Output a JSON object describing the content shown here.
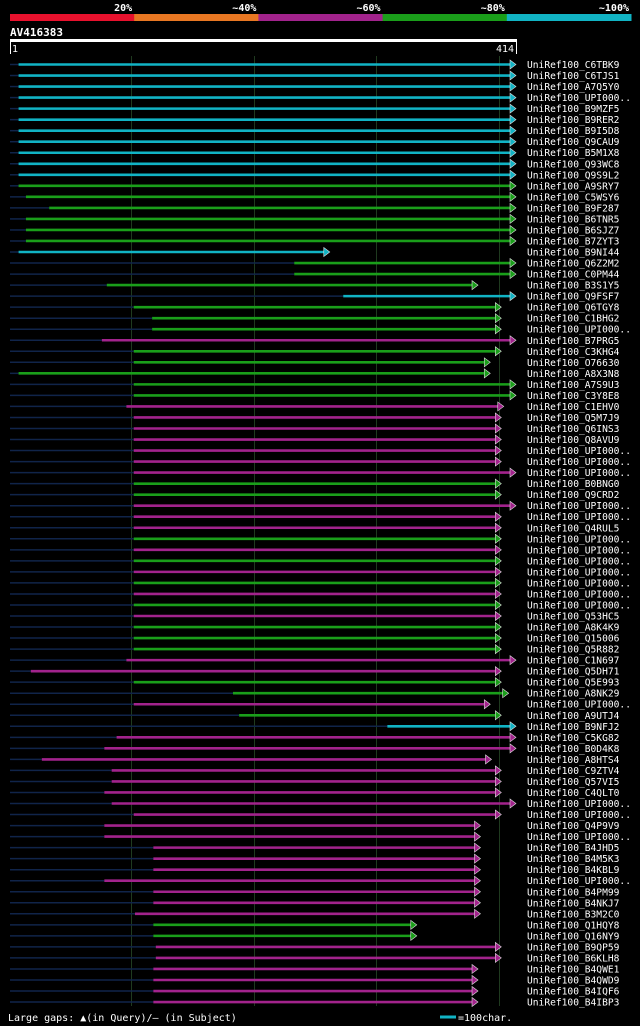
{
  "chart_data": {
    "type": "alignment-overview",
    "title": "AV416383",
    "query_start": 1,
    "query_end": 414,
    "colour_scale": [
      {
        "label": "20%",
        "color": "#e8112d"
      },
      {
        "label": "~40%",
        "color": "#e87722"
      },
      {
        "label": "~60%",
        "color": "#a2238c"
      },
      {
        "label": "~80%",
        "color": "#1a9e1a"
      },
      {
        "label": "~100%",
        "color": "#11b3c4"
      }
    ],
    "colors": {
      "cyan": "#11b3c4",
      "green": "#1a9e1a",
      "purple": "#a2238c",
      "grid": "#1f3a1f",
      "stem": "#10244a",
      "text": "#ffffff"
    },
    "footer": {
      "gaps_text": "Large gaps: ▲(in Query)/– (in Subject)",
      "scale_text": "=100char."
    },
    "hits": [
      {
        "label": "UniRef100_C6TBK9",
        "start": 8,
        "end": 414,
        "color": "cyan",
        "arrow": true
      },
      {
        "label": "UniRef100_C6TJS1",
        "start": 8,
        "end": 414,
        "color": "cyan",
        "arrow": true
      },
      {
        "label": "UniRef100_A7Q5Y0",
        "start": 8,
        "end": 414,
        "color": "cyan",
        "arrow": true
      },
      {
        "label": "UniRef100_UPI000..",
        "start": 8,
        "end": 414,
        "color": "cyan",
        "arrow": true
      },
      {
        "label": "UniRef100_B9MZF5",
        "start": 8,
        "end": 414,
        "color": "cyan",
        "arrow": true
      },
      {
        "label": "UniRef100_B9RER2",
        "start": 8,
        "end": 414,
        "color": "cyan",
        "arrow": true
      },
      {
        "label": "UniRef100_B9I5D8",
        "start": 8,
        "end": 414,
        "color": "cyan",
        "arrow": true
      },
      {
        "label": "UniRef100_Q9CAU9",
        "start": 8,
        "end": 414,
        "color": "cyan",
        "arrow": true
      },
      {
        "label": "UniRef100_B5M1X8",
        "start": 8,
        "end": 414,
        "color": "cyan",
        "arrow": true
      },
      {
        "label": "UniRef100_Q93WC8",
        "start": 8,
        "end": 414,
        "color": "cyan",
        "arrow": true
      },
      {
        "label": "UniRef100_Q9S9L2",
        "start": 8,
        "end": 414,
        "color": "cyan",
        "arrow": true
      },
      {
        "label": "UniRef100_A9SRY7",
        "start": 8,
        "end": 414,
        "color": "green",
        "arrow": true
      },
      {
        "label": "UniRef100_C5WSY6",
        "start": 14,
        "end": 414,
        "color": "green",
        "arrow": true
      },
      {
        "label": "UniRef100_B9F287",
        "start": 33,
        "end": 414,
        "color": "green",
        "arrow": true
      },
      {
        "label": "UniRef100_B6TNR5",
        "start": 14,
        "end": 414,
        "color": "green",
        "arrow": true
      },
      {
        "label": "UniRef100_B6SJZ7",
        "start": 14,
        "end": 414,
        "color": "green",
        "arrow": true
      },
      {
        "label": "UniRef100_B7ZYT3",
        "start": 14,
        "end": 414,
        "color": "green",
        "arrow": true
      },
      {
        "label": "UniRef100_B9NI44",
        "start": 8,
        "end": 262,
        "color": "cyan",
        "arrow": true
      },
      {
        "label": "UniRef100_Q6Z2M2",
        "start": 233,
        "end": 414,
        "color": "green",
        "arrow": true
      },
      {
        "label": "UniRef100_C0PM44",
        "start": 233,
        "end": 414,
        "color": "green",
        "arrow": true
      },
      {
        "label": "UniRef100_B3S1Y5",
        "start": 80,
        "end": 383,
        "color": "green",
        "arrow": true
      },
      {
        "label": "UniRef100_Q9FSF7",
        "start": 273,
        "end": 414,
        "color": "cyan",
        "arrow": true
      },
      {
        "label": "UniRef100_Q6TGY8",
        "start": 102,
        "end": 402,
        "color": "green",
        "arrow": true
      },
      {
        "label": "UniRef100_C1BHG2",
        "start": 117,
        "end": 402,
        "color": "green",
        "arrow": true
      },
      {
        "label": "UniRef100_UPI000..",
        "start": 117,
        "end": 402,
        "color": "green",
        "arrow": true
      },
      {
        "label": "UniRef100_B7PRG5",
        "start": 76,
        "end": 414,
        "color": "purple",
        "arrow": true
      },
      {
        "label": "UniRef100_C3KHG4",
        "start": 102,
        "end": 402,
        "color": "green",
        "arrow": true
      },
      {
        "label": "UniRef100_O76630",
        "start": 102,
        "end": 393,
        "color": "green",
        "arrow": true
      },
      {
        "label": "UniRef100_A8X3N8",
        "start": 8,
        "end": 393,
        "color": "green",
        "arrow": true
      },
      {
        "label": "UniRef100_A7S9U3",
        "start": 102,
        "end": 414,
        "color": "green",
        "arrow": true
      },
      {
        "label": "UniRef100_C3Y8E8",
        "start": 102,
        "end": 414,
        "color": "green",
        "arrow": true
      },
      {
        "label": "UniRef100_C1EHV0",
        "start": 96,
        "end": 404,
        "color": "purple",
        "arrow": true
      },
      {
        "label": "UniRef100_Q5M7J9",
        "start": 102,
        "end": 402,
        "color": "purple",
        "arrow": true
      },
      {
        "label": "UniRef100_Q6INS3",
        "start": 102,
        "end": 402,
        "color": "purple",
        "arrow": true
      },
      {
        "label": "UniRef100_Q8AVU9",
        "start": 102,
        "end": 402,
        "color": "purple",
        "arrow": true
      },
      {
        "label": "UniRef100_UPI000..",
        "start": 102,
        "end": 402,
        "color": "purple",
        "arrow": true
      },
      {
        "label": "UniRef100_UPI000..",
        "start": 102,
        "end": 402,
        "color": "purple",
        "arrow": true
      },
      {
        "label": "UniRef100_UPI000..",
        "start": 102,
        "end": 414,
        "color": "purple",
        "arrow": true
      },
      {
        "label": "UniRef100_B0BNG0",
        "start": 102,
        "end": 402,
        "color": "green",
        "arrow": true
      },
      {
        "label": "UniRef100_Q9CRD2",
        "start": 102,
        "end": 402,
        "color": "green",
        "arrow": true
      },
      {
        "label": "UniRef100_UPI000..",
        "start": 102,
        "end": 414,
        "color": "purple",
        "arrow": true
      },
      {
        "label": "UniRef100_UPI000..",
        "start": 102,
        "end": 402,
        "color": "purple",
        "arrow": true
      },
      {
        "label": "UniRef100_Q4RUL5",
        "start": 102,
        "end": 402,
        "color": "purple",
        "arrow": true
      },
      {
        "label": "UniRef100_UPI000..",
        "start": 102,
        "end": 402,
        "color": "green",
        "arrow": true
      },
      {
        "label": "UniRef100_UPI000..",
        "start": 102,
        "end": 402,
        "color": "purple",
        "arrow": true
      },
      {
        "label": "UniRef100_UPI000..",
        "start": 102,
        "end": 402,
        "color": "green",
        "arrow": true
      },
      {
        "label": "UniRef100_UPI000..",
        "start": 102,
        "end": 402,
        "color": "purple",
        "arrow": true
      },
      {
        "label": "UniRef100_UPI000..",
        "start": 102,
        "end": 402,
        "color": "green",
        "arrow": true
      },
      {
        "label": "UniRef100_UPI000..",
        "start": 102,
        "end": 402,
        "color": "purple",
        "arrow": true
      },
      {
        "label": "UniRef100_UPI000..",
        "start": 102,
        "end": 402,
        "color": "green",
        "arrow": true
      },
      {
        "label": "UniRef100_Q53HC5",
        "start": 102,
        "end": 402,
        "color": "purple",
        "arrow": true
      },
      {
        "label": "UniRef100_A8K4K9",
        "start": 102,
        "end": 402,
        "color": "green",
        "arrow": true
      },
      {
        "label": "UniRef100_Q15006",
        "start": 102,
        "end": 402,
        "color": "green",
        "arrow": true
      },
      {
        "label": "UniRef100_Q5R882",
        "start": 102,
        "end": 402,
        "color": "green",
        "arrow": true
      },
      {
        "label": "UniRef100_C1N697",
        "start": 96,
        "end": 414,
        "color": "purple",
        "arrow": true
      },
      {
        "label": "UniRef100_Q5DH71",
        "start": 18,
        "end": 402,
        "color": "purple",
        "arrow": true
      },
      {
        "label": "UniRef100_Q5E993",
        "start": 102,
        "end": 402,
        "color": "green",
        "arrow": true
      },
      {
        "label": "UniRef100_A8NK29",
        "start": 183,
        "end": 408,
        "color": "green",
        "arrow": true
      },
      {
        "label": "UniRef100_UPI000..",
        "start": 102,
        "end": 393,
        "color": "purple",
        "arrow": true
      },
      {
        "label": "UniRef100_A9UTJ4",
        "start": 188,
        "end": 402,
        "color": "green",
        "arrow": true
      },
      {
        "label": "UniRef100_B9NFJ2",
        "start": 309,
        "end": 414,
        "color": "cyan",
        "arrow": true
      },
      {
        "label": "UniRef100_C5KG82",
        "start": 88,
        "end": 414,
        "color": "purple",
        "arrow": true
      },
      {
        "label": "UniRef100_B0D4K8",
        "start": 78,
        "end": 414,
        "color": "purple",
        "arrow": true
      },
      {
        "label": "UniRef100_A8HTS4",
        "start": 27,
        "end": 394,
        "color": "purple",
        "arrow": true
      },
      {
        "label": "UniRef100_C9ZTV4",
        "start": 84,
        "end": 402,
        "color": "purple",
        "arrow": true
      },
      {
        "label": "UniRef100_Q57VI5",
        "start": 84,
        "end": 402,
        "color": "purple",
        "arrow": true
      },
      {
        "label": "UniRef100_C4QLT0",
        "start": 78,
        "end": 402,
        "color": "purple",
        "arrow": true
      },
      {
        "label": "UniRef100_UPI000..",
        "start": 84,
        "end": 414,
        "color": "purple",
        "arrow": true
      },
      {
        "label": "UniRef100_UPI000..",
        "start": 102,
        "end": 402,
        "color": "purple",
        "arrow": true
      },
      {
        "label": "UniRef100_Q4P9V9",
        "start": 78,
        "end": 385,
        "color": "purple",
        "arrow": true
      },
      {
        "label": "UniRef100_UPI000..",
        "start": 78,
        "end": 385,
        "color": "purple",
        "arrow": true
      },
      {
        "label": "UniRef100_B4JHD5",
        "start": 118,
        "end": 385,
        "color": "purple",
        "arrow": true
      },
      {
        "label": "UniRef100_B4M5K3",
        "start": 118,
        "end": 385,
        "color": "purple",
        "arrow": true
      },
      {
        "label": "UniRef100_B4KBL9",
        "start": 118,
        "end": 385,
        "color": "purple",
        "arrow": true
      },
      {
        "label": "UniRef100_UPI000..",
        "start": 78,
        "end": 385,
        "color": "purple",
        "arrow": true
      },
      {
        "label": "UniRef100_B4PM99",
        "start": 118,
        "end": 385,
        "color": "purple",
        "arrow": true
      },
      {
        "label": "UniRef100_B4NKJ7",
        "start": 118,
        "end": 385,
        "color": "purple",
        "arrow": true
      },
      {
        "label": "UniRef100_B3M2C0",
        "start": 103,
        "end": 385,
        "color": "purple",
        "arrow": true
      },
      {
        "label": "UniRef100_Q1HQY8",
        "start": 118,
        "end": 333,
        "color": "green",
        "arrow": true
      },
      {
        "label": "UniRef100_Q16NY9",
        "start": 118,
        "end": 333,
        "color": "green",
        "arrow": true
      },
      {
        "label": "UniRef100_B9QP59",
        "start": 120,
        "end": 402,
        "color": "purple",
        "arrow": true
      },
      {
        "label": "UniRef100_B6KLH8",
        "start": 120,
        "end": 402,
        "color": "purple",
        "arrow": true
      },
      {
        "label": "UniRef100_B4QWE1",
        "start": 118,
        "end": 383,
        "color": "purple",
        "arrow": true
      },
      {
        "label": "UniRef100_B4QWD9",
        "start": 118,
        "end": 383,
        "color": "purple",
        "arrow": true
      },
      {
        "label": "UniRef100_B4IQF6",
        "start": 118,
        "end": 383,
        "color": "purple",
        "arrow": true
      },
      {
        "label": "UniRef100_B4IBP3",
        "start": 118,
        "end": 383,
        "color": "purple",
        "arrow": true
      }
    ]
  }
}
